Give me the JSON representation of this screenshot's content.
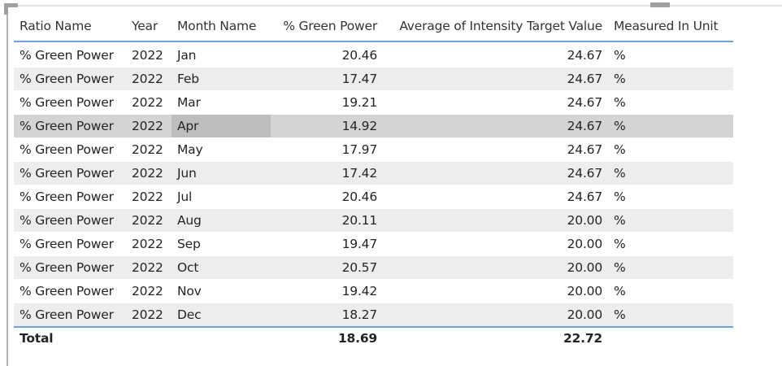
{
  "table": {
    "headers": {
      "ratio_name": "Ratio Name",
      "year": "Year",
      "month_name": "Month Name",
      "green_power": "% Green Power",
      "avg_intensity": "Average of Intensity Target Value",
      "unit": "Measured In Unit"
    },
    "rows": [
      {
        "ratio_name": "% Green Power",
        "year": "2022",
        "month_name": "Jan",
        "green_power": "20.46",
        "avg_intensity": "24.67",
        "unit": "%"
      },
      {
        "ratio_name": "% Green Power",
        "year": "2022",
        "month_name": "Feb",
        "green_power": "17.47",
        "avg_intensity": "24.67",
        "unit": "%"
      },
      {
        "ratio_name": "% Green Power",
        "year": "2022",
        "month_name": "Mar",
        "green_power": "19.21",
        "avg_intensity": "24.67",
        "unit": "%"
      },
      {
        "ratio_name": "% Green Power",
        "year": "2022",
        "month_name": "Apr",
        "green_power": "14.92",
        "avg_intensity": "24.67",
        "unit": "%"
      },
      {
        "ratio_name": "% Green Power",
        "year": "2022",
        "month_name": "May",
        "green_power": "17.97",
        "avg_intensity": "24.67",
        "unit": "%"
      },
      {
        "ratio_name": "% Green Power",
        "year": "2022",
        "month_name": "Jun",
        "green_power": "17.42",
        "avg_intensity": "24.67",
        "unit": "%"
      },
      {
        "ratio_name": "% Green Power",
        "year": "2022",
        "month_name": "Jul",
        "green_power": "20.46",
        "avg_intensity": "24.67",
        "unit": "%"
      },
      {
        "ratio_name": "% Green Power",
        "year": "2022",
        "month_name": "Aug",
        "green_power": "20.11",
        "avg_intensity": "20.00",
        "unit": "%"
      },
      {
        "ratio_name": "% Green Power",
        "year": "2022",
        "month_name": "Sep",
        "green_power": "19.47",
        "avg_intensity": "20.00",
        "unit": "%"
      },
      {
        "ratio_name": "% Green Power",
        "year": "2022",
        "month_name": "Oct",
        "green_power": "20.57",
        "avg_intensity": "20.00",
        "unit": "%"
      },
      {
        "ratio_name": "% Green Power",
        "year": "2022",
        "month_name": "Nov",
        "green_power": "19.42",
        "avg_intensity": "20.00",
        "unit": "%"
      },
      {
        "ratio_name": "% Green Power",
        "year": "2022",
        "month_name": "Dec",
        "green_power": "18.27",
        "avg_intensity": "20.00",
        "unit": "%"
      }
    ],
    "total": {
      "label": "Total",
      "green_power": "18.69",
      "avg_intensity": "22.72"
    },
    "highlighted_row": 3,
    "colors": {
      "header_rule": "#6ea4dd",
      "band": "#ededed",
      "highlight": "#d4d4d4"
    }
  }
}
